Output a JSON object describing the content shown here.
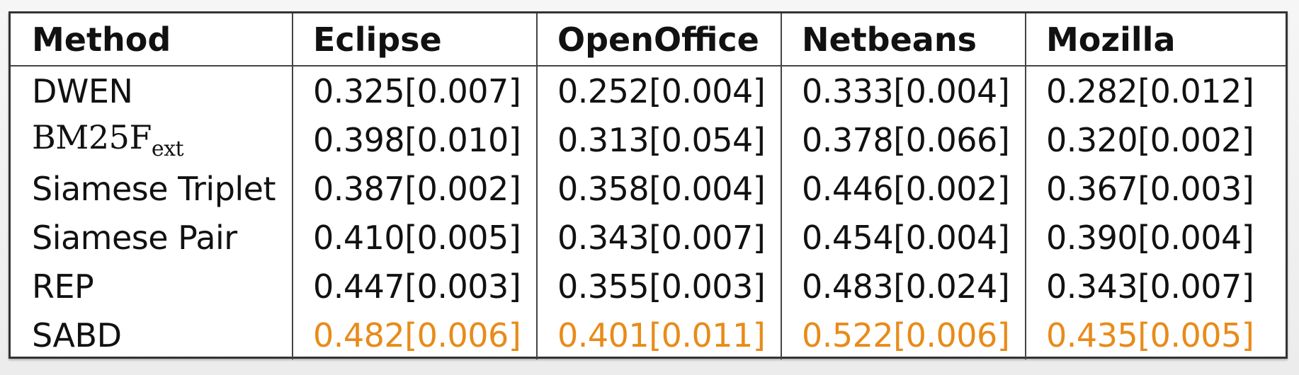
{
  "table": {
    "headers": [
      "Method",
      "Eclipse",
      "OpenOffice",
      "Netbeans",
      "Mozilla"
    ],
    "rows": [
      {
        "method": "DWEN",
        "values": [
          "0.325[0.007]",
          "0.252[0.004]",
          "0.333[0.004]",
          "0.282[0.012]"
        ]
      },
      {
        "method": "BM25F",
        "method_sub": "ext",
        "values": [
          "0.398[0.010]",
          "0.313[0.054]",
          "0.378[0.066]",
          "0.320[0.002]"
        ]
      },
      {
        "method": "Siamese Triplet",
        "values": [
          "0.387[0.002]",
          "0.358[0.004]",
          "0.446[0.002]",
          "0.367[0.003]"
        ]
      },
      {
        "method": "Siamese Pair",
        "values": [
          "0.410[0.005]",
          "0.343[0.007]",
          "0.454[0.004]",
          "0.390[0.004]"
        ]
      },
      {
        "method": "REP",
        "values": [
          "0.447[0.003]",
          "0.355[0.003]",
          "0.483[0.024]",
          "0.343[0.007]"
        ]
      },
      {
        "method": "SABD",
        "values": [
          "0.482[0.006]",
          "0.401[0.011]",
          "0.522[0.006]",
          "0.435[0.005]"
        ]
      }
    ]
  },
  "colors": {
    "highlight": "#e88b1a",
    "text": "#111111"
  }
}
